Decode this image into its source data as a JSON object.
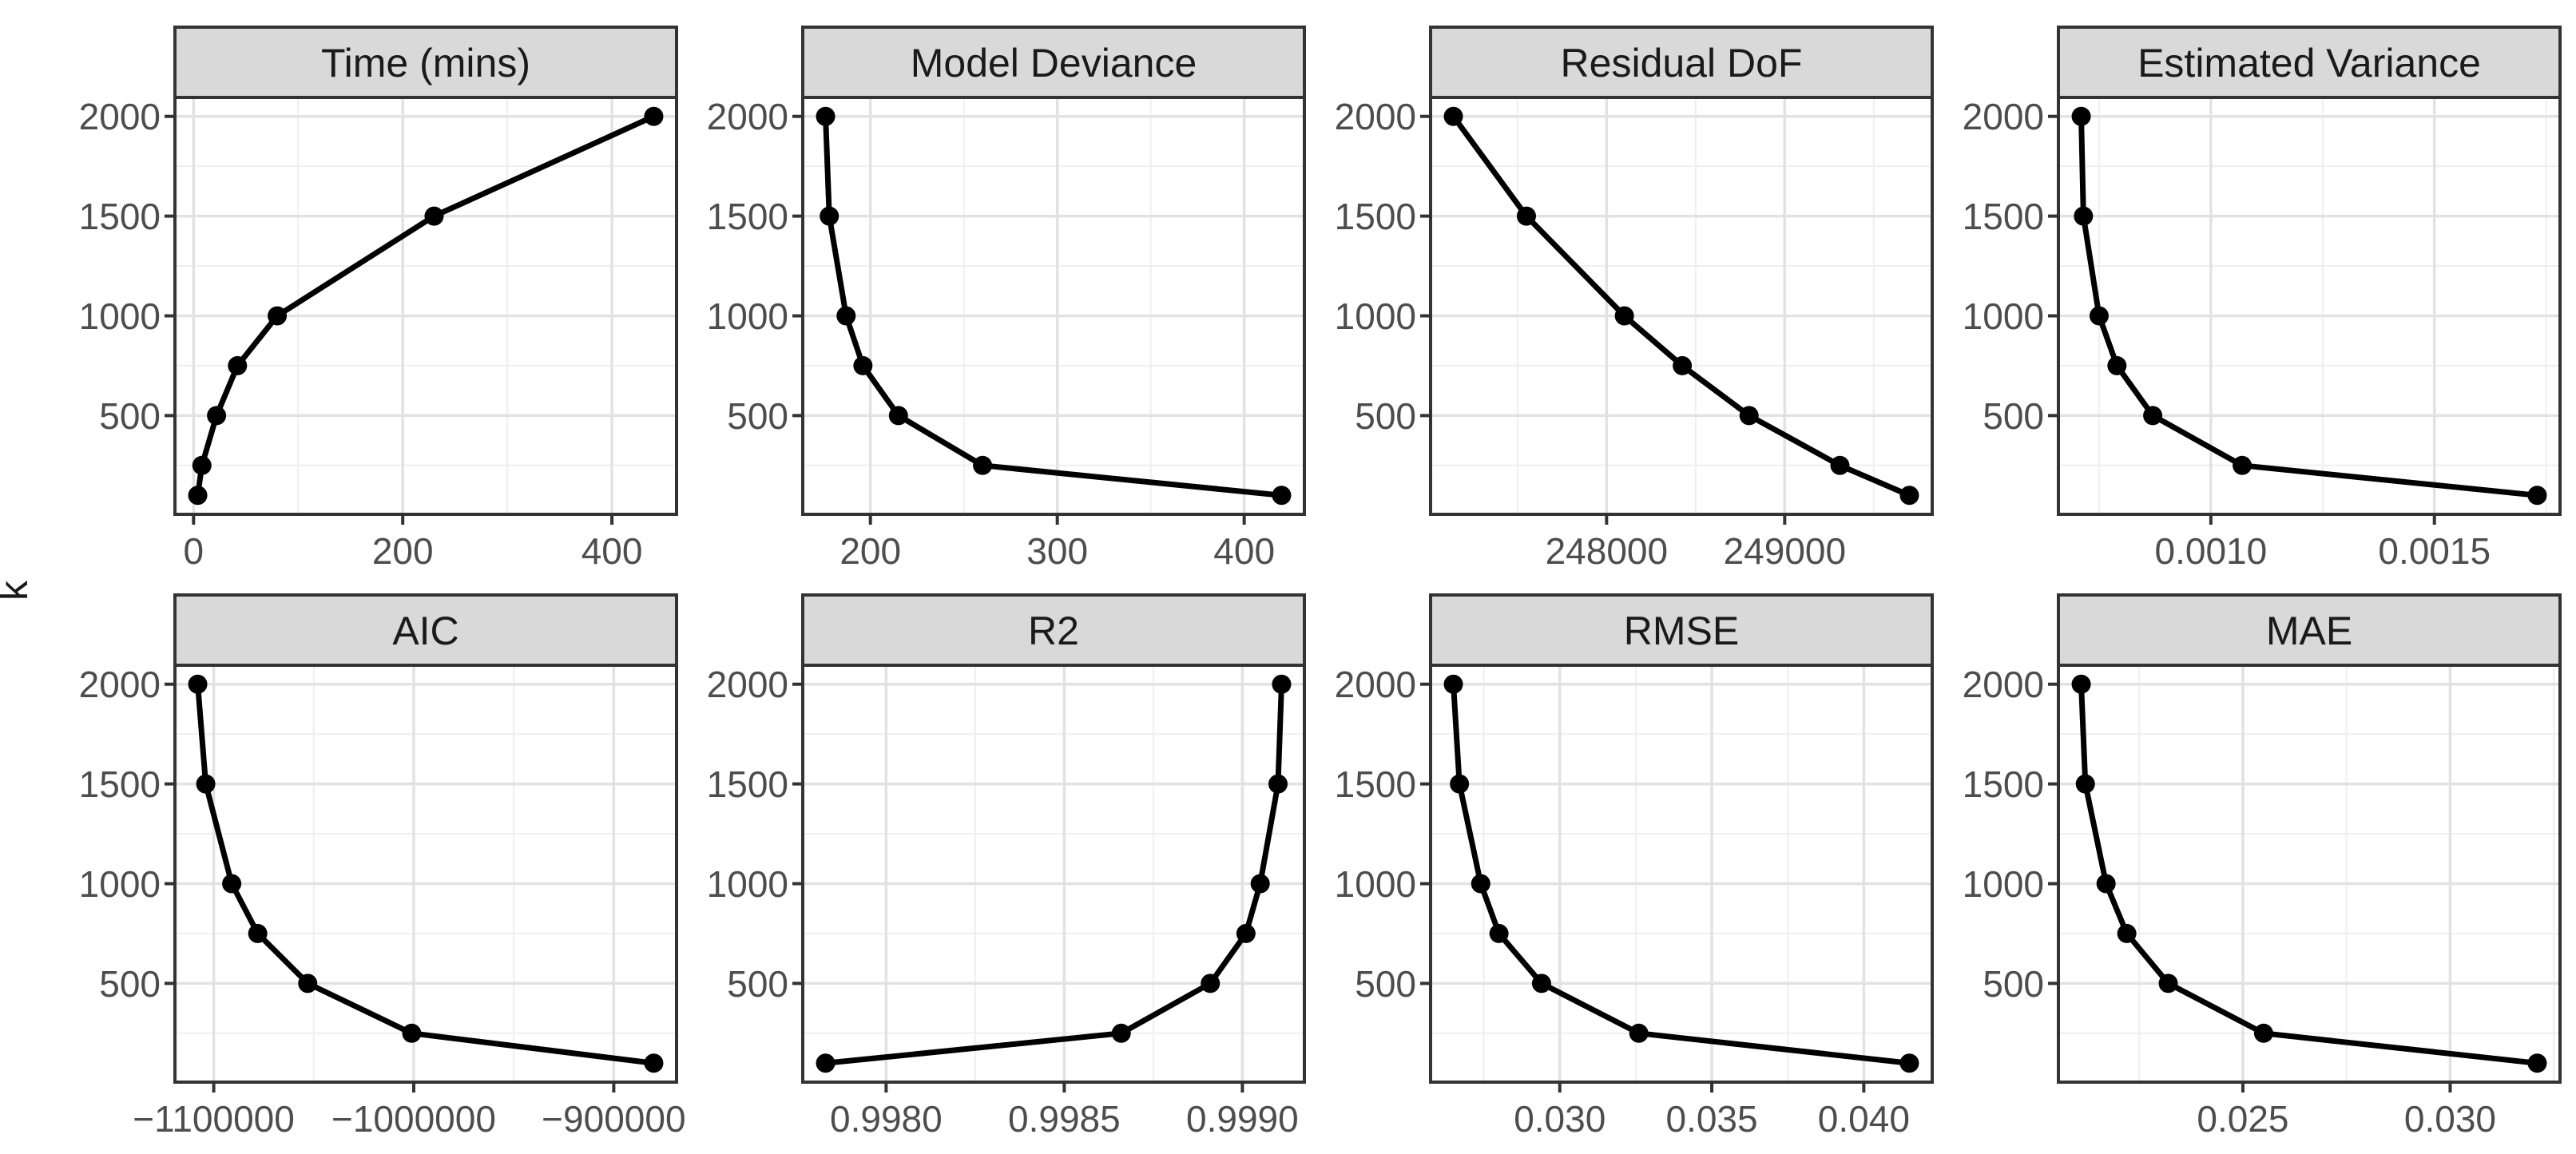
{
  "chart_data": {
    "type": "line",
    "layout": "faceted 2 rows x 4 columns, free x scales, shared y",
    "ylabel": "k",
    "grid": "major and minor gridlines on",
    "legend": "none",
    "k": [
      100,
      250,
      500,
      750,
      1000,
      1500,
      2000
    ],
    "ylim": [
      5,
      2095
    ],
    "y_ticks": {
      "major": [
        {
          "v": 500,
          "label": "500"
        },
        {
          "v": 1000,
          "label": "1000"
        },
        {
          "v": 1500,
          "label": "1500"
        },
        {
          "v": 2000,
          "label": "2000"
        }
      ],
      "minor": [
        250,
        750,
        1250,
        1750
      ]
    },
    "panels": [
      {
        "title": "Time (mins)",
        "values": [
          4,
          8,
          22,
          42,
          80,
          230,
          440
        ],
        "x_ticks": [
          {
            "v": 0,
            "label": "0"
          },
          {
            "v": 200,
            "label": "200"
          },
          {
            "v": 400,
            "label": "400"
          }
        ]
      },
      {
        "title": "Model Deviance",
        "values": [
          420,
          260,
          215,
          196,
          187,
          178,
          176
        ],
        "x_ticks": [
          {
            "v": 200,
            "label": "200"
          },
          {
            "v": 300,
            "label": "300"
          },
          {
            "v": 400,
            "label": "400"
          }
        ]
      },
      {
        "title": "Residual DoF",
        "values": [
          249700,
          249310,
          248800,
          248425,
          248100,
          247550,
          247140
        ],
        "x_ticks": [
          {
            "v": 248000,
            "label": "248000"
          },
          {
            "v": 249000,
            "label": "249000"
          }
        ]
      },
      {
        "title": "Estimated Variance",
        "values": [
          0.00173,
          0.00107,
          0.00087,
          0.00079,
          0.00075,
          0.000715,
          0.00071
        ],
        "x_ticks": [
          {
            "v": 0.001,
            "label": "0.0010"
          },
          {
            "v": 0.0015,
            "label": "0.0015"
          }
        ]
      },
      {
        "title": "AIC",
        "values": [
          -880000,
          -1001000,
          -1053000,
          -1078000,
          -1091000,
          -1104000,
          -1108000
        ],
        "x_ticks": [
          {
            "v": -1100000,
            "label": "−1100000"
          },
          {
            "v": -1000000,
            "label": "−1000000"
          },
          {
            "v": -900000,
            "label": "−900000"
          }
        ]
      },
      {
        "title": "R2",
        "values": [
          0.99783,
          0.99866,
          0.99891,
          0.99901,
          0.99905,
          0.9991,
          0.99911
        ],
        "x_ticks": [
          {
            "v": 0.998,
            "label": "0.9980"
          },
          {
            "v": 0.9985,
            "label": "0.9985"
          },
          {
            "v": 0.999,
            "label": "0.9990"
          }
        ]
      },
      {
        "title": "RMSE",
        "values": [
          0.0415,
          0.0326,
          0.0294,
          0.028,
          0.0274,
          0.0267,
          0.0265
        ],
        "x_ticks": [
          {
            "v": 0.03,
            "label": "0.030"
          },
          {
            "v": 0.035,
            "label": "0.035"
          },
          {
            "v": 0.04,
            "label": "0.040"
          }
        ]
      },
      {
        "title": "MAE",
        "values": [
          0.0321,
          0.0255,
          0.0232,
          0.0222,
          0.0217,
          0.0212,
          0.0211
        ],
        "x_ticks": [
          {
            "v": 0.025,
            "label": "0.025"
          },
          {
            "v": 0.03,
            "label": "0.030"
          }
        ]
      }
    ]
  },
  "colors": {
    "background": "#ffffff",
    "strip_fill": "#d9d9d9",
    "border": "#333333",
    "grid_major": "#e2e2e2",
    "grid_minor": "#efefef",
    "series": "#000000",
    "tick_mark": "#333333",
    "tick_text": "#4d4d4d",
    "title_text": "#1a1a1a"
  }
}
